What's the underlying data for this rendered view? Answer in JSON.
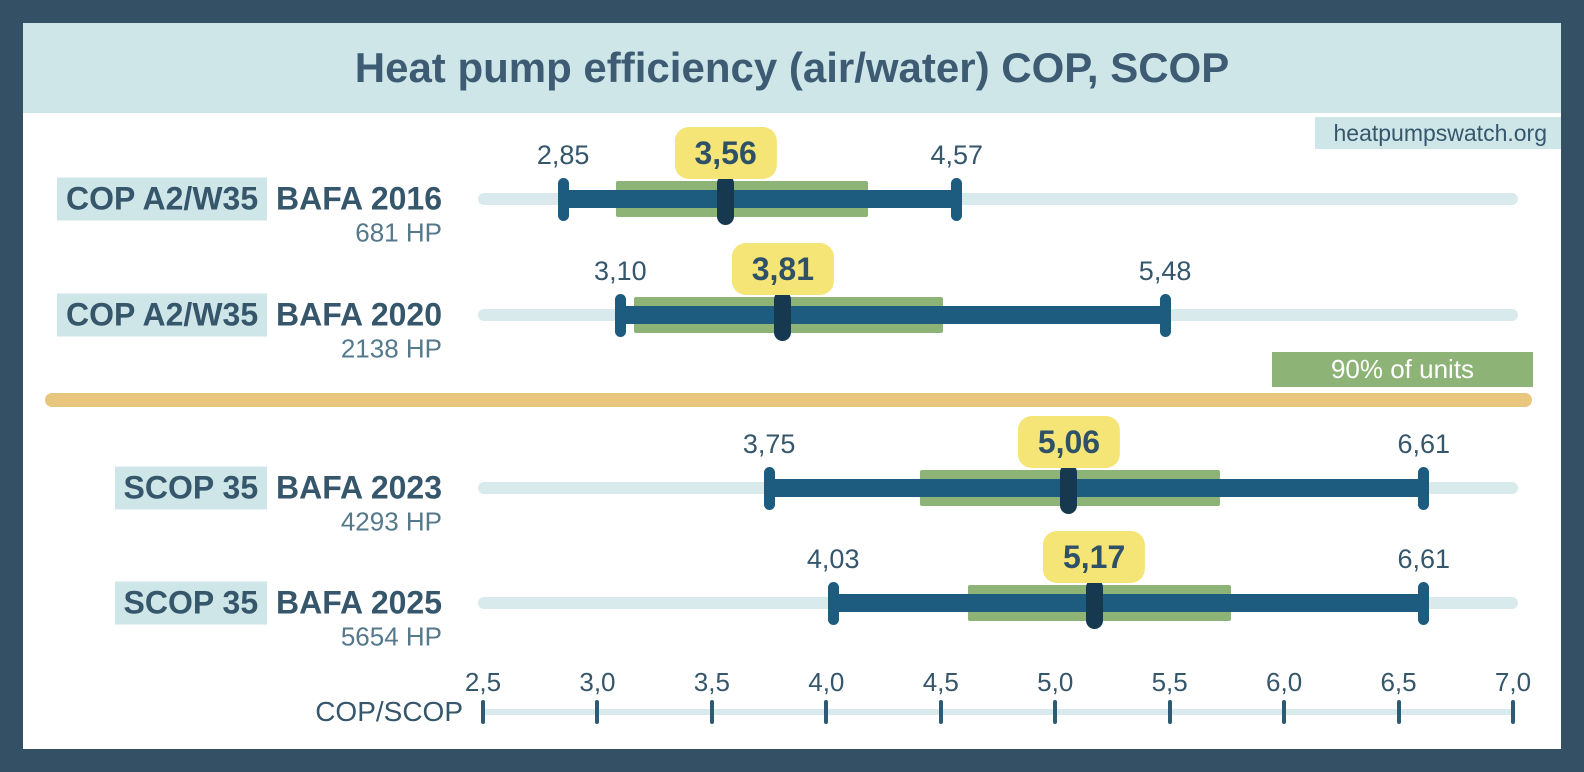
{
  "header": {
    "title": "Heat pump efficiency (air/water) COP, SCOP",
    "source_badge": "heatpumpswatch.org"
  },
  "legend": {
    "label": "90% of units"
  },
  "chart_data": {
    "type": "range-bar",
    "title": "Heat pump efficiency (air/water) COP, SCOP",
    "xlabel": "COP/SCOP",
    "axis": {
      "min": 2.5,
      "max": 7.0,
      "step": 0.5,
      "tick_labels": [
        "2,5",
        "3,0",
        "3,5",
        "4,0",
        "4,5",
        "5,0",
        "5,5",
        "6,0",
        "6,5",
        "7,0"
      ]
    },
    "legend": {
      "label": "90% of units",
      "position": "right, above section divider"
    },
    "series": [
      {
        "section": "COP",
        "metric": "COP A2/W35",
        "dataset": "BAFA 2016",
        "sample": "681 HP",
        "min": 2.85,
        "median": 3.56,
        "max": 4.57,
        "band90": [
          3.08,
          4.18
        ],
        "labels": {
          "min": "2,85",
          "median": "3,56",
          "max": "4,57"
        }
      },
      {
        "section": "COP",
        "metric": "COP A2/W35",
        "dataset": "BAFA 2020",
        "sample": "2138 HP",
        "min": 3.1,
        "median": 3.81,
        "max": 5.48,
        "band90": [
          3.16,
          4.51
        ],
        "labels": {
          "min": "3,10",
          "median": "3,81",
          "max": "5,48"
        }
      },
      {
        "section": "SCOP",
        "metric": "SCOP 35",
        "dataset": "BAFA 2023",
        "sample": "4293 HP",
        "min": 3.75,
        "median": 5.06,
        "max": 6.61,
        "band90": [
          4.41,
          5.72
        ],
        "labels": {
          "min": "3,75",
          "median": "5,06",
          "max": "6,61"
        }
      },
      {
        "section": "SCOP",
        "metric": "SCOP 35",
        "dataset": "BAFA 2025",
        "sample": "5654 HP",
        "min": 4.03,
        "median": 5.17,
        "max": 6.61,
        "band90": [
          4.62,
          5.77
        ],
        "labels": {
          "min": "4,03",
          "median": "5,17",
          "max": "6,61"
        }
      }
    ],
    "divider_after_series_index": 1
  },
  "colors": {
    "frame": "#335064",
    "panel": "#ffffff",
    "light_blue": "#cfe6e9",
    "track": "#d9eaed",
    "bar_blue": "#1d5c7e",
    "median_navy": "#16394f",
    "band_green": "#8db377",
    "badge_yellow": "#f5e476",
    "divider_orange": "#e9c67d",
    "text_dark": "#35566b",
    "text_muted": "#54788c"
  }
}
